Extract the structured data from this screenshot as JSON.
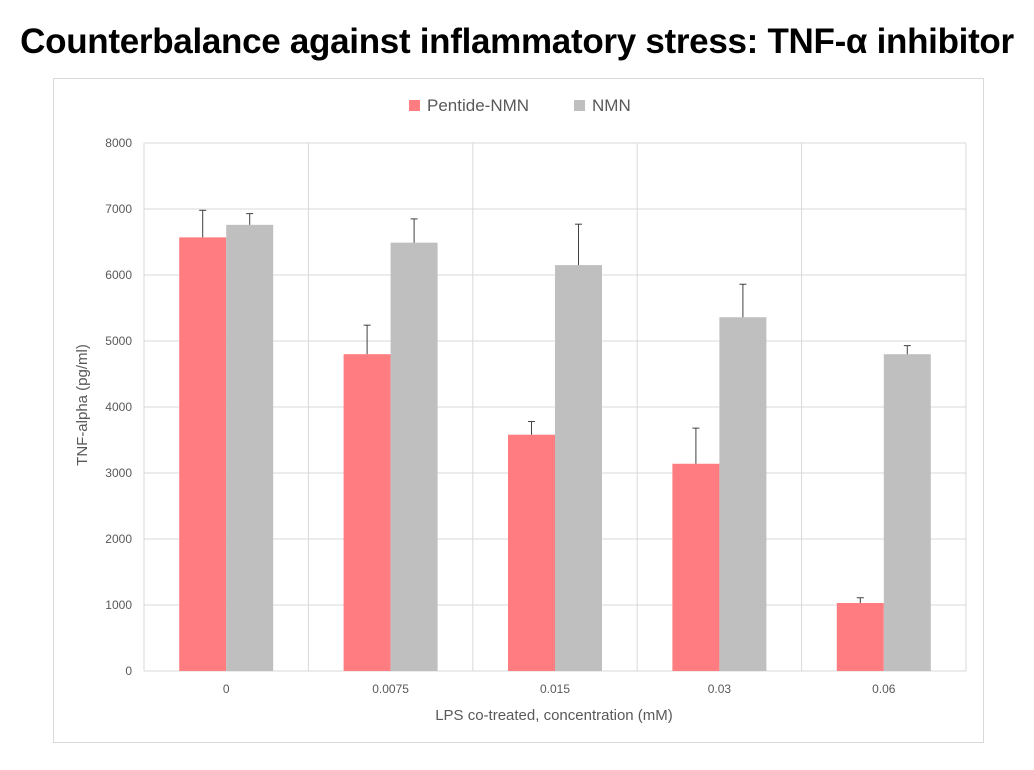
{
  "page": {
    "title": "Counterbalance against inflammatory stress: TNF-α inhibitor"
  },
  "chart_data": {
    "type": "bar",
    "categories": [
      "0",
      "0.0075",
      "0.015",
      "0.03",
      "0.06"
    ],
    "series": [
      {
        "name": "Pentide-NMN",
        "color": "#ff7c80",
        "values": [
          6570,
          4800,
          3580,
          3140,
          1030
        ],
        "errors": [
          410,
          440,
          200,
          540,
          80
        ]
      },
      {
        "name": "NMN",
        "color": "#bfbfbf",
        "values": [
          6760,
          6490,
          6150,
          5360,
          4800
        ],
        "errors": [
          170,
          360,
          620,
          500,
          130
        ]
      }
    ],
    "xlabel": "LPS co-treated, concentration (mM)",
    "ylabel": "TNF-alpha (pg/ml)",
    "ylim": [
      0,
      8000
    ],
    "yticks": [
      0,
      1000,
      2000,
      3000,
      4000,
      5000,
      6000,
      7000,
      8000
    ],
    "legend_position": "top-center",
    "grid": true
  }
}
